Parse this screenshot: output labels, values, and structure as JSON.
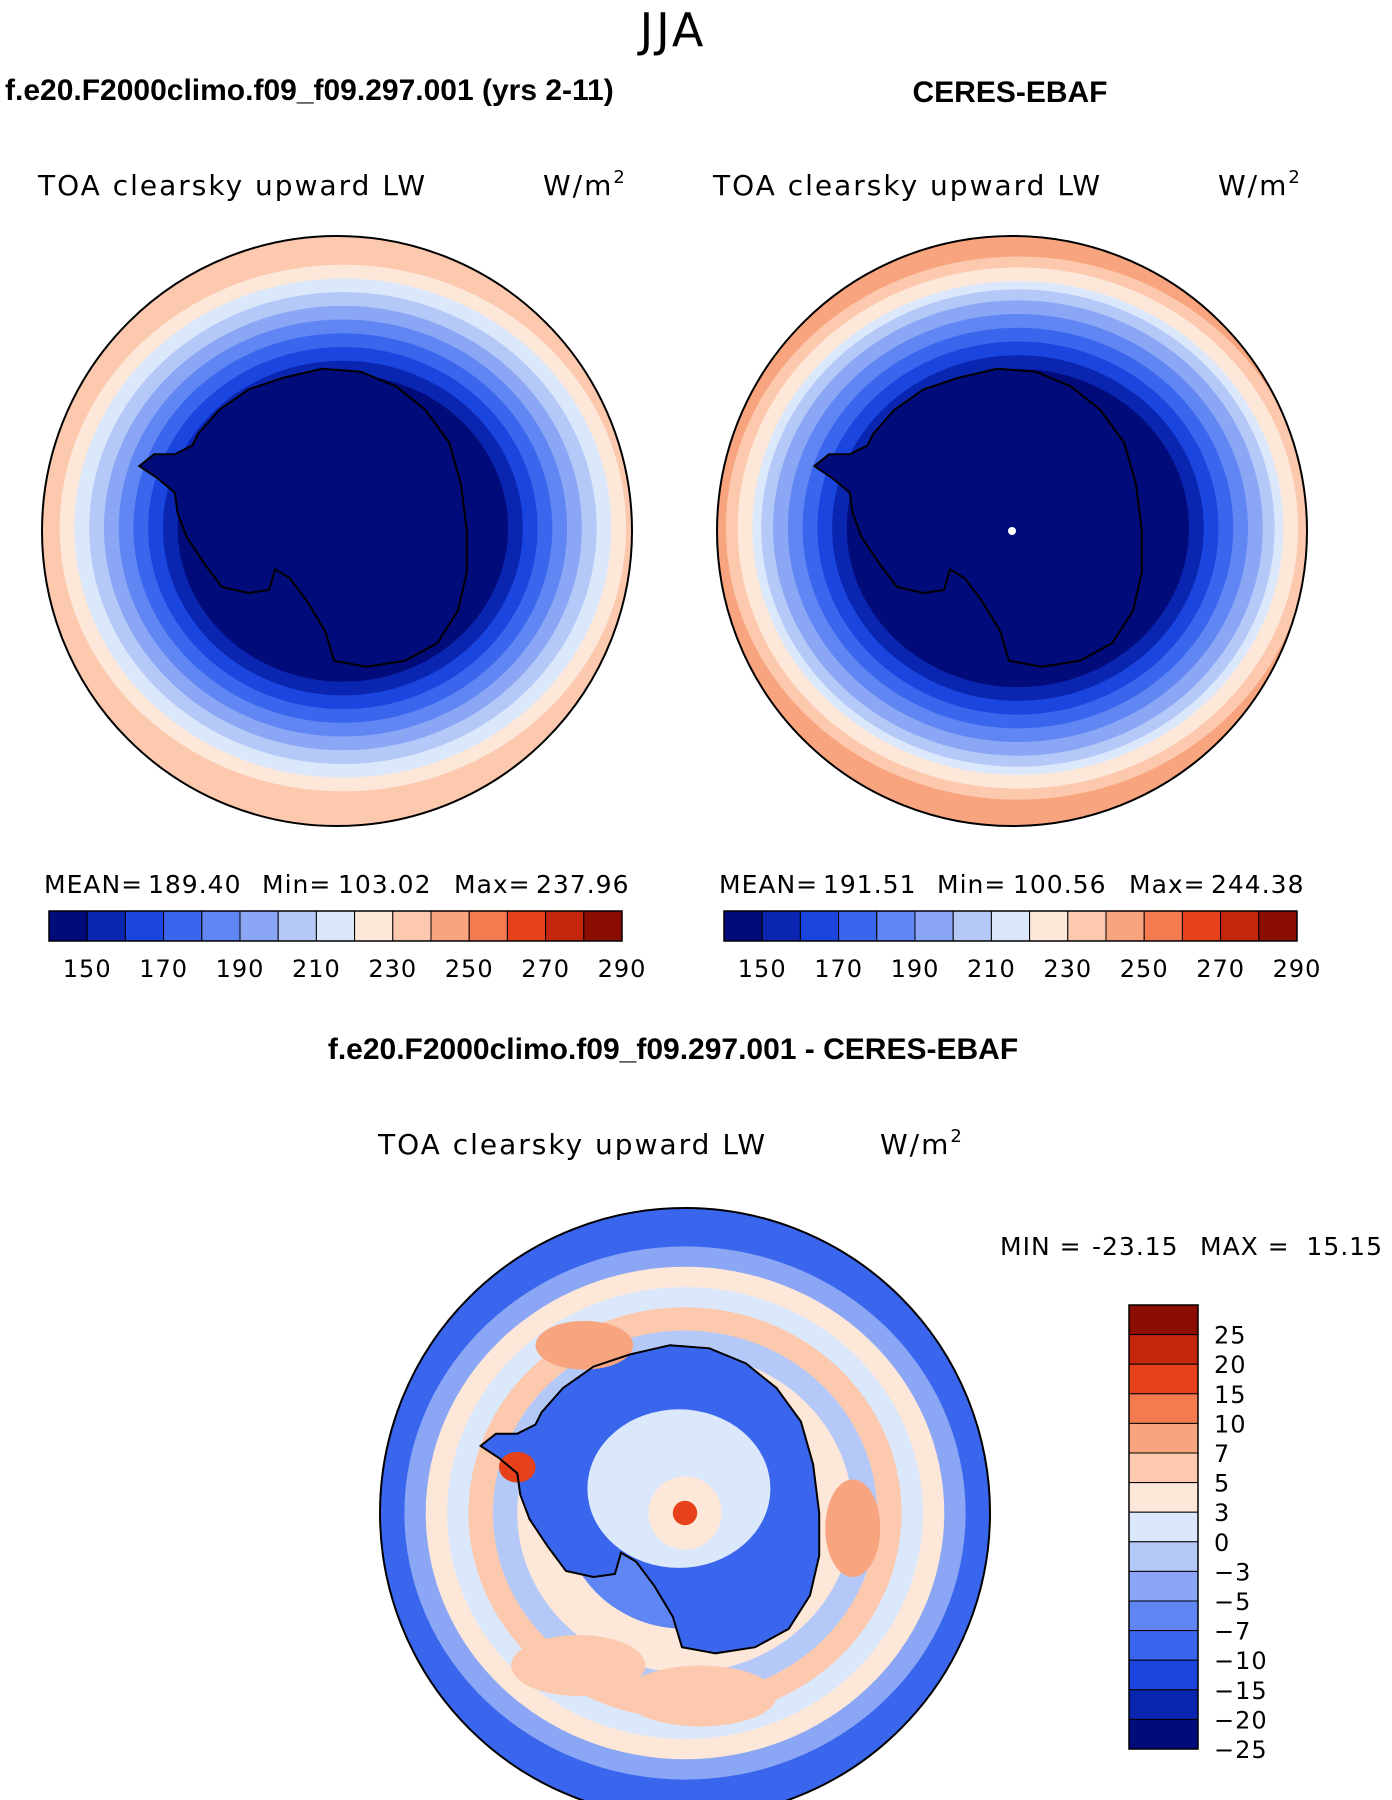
{
  "season": "JJA",
  "titles": {
    "model": "f.e20.F2000climo.f09_f09.297.001 (yrs 2-11)",
    "obs": "CERES-EBAF",
    "diff": "f.e20.F2000climo.f09_f09.297.001 - CERES-EBAF"
  },
  "variable": "TOA clearsky upward LW",
  "units_base": "W/m",
  "units_exp": "2",
  "colors": {
    "abs_scale": [
      "#020b7a",
      "#0a26b0",
      "#1a45de",
      "#3a66ee",
      "#5f86f3",
      "#8aa6f4",
      "#b5c9f8",
      "#dbe7fb",
      "#fde7d8",
      "#fcc9ae",
      "#f8a47e",
      "#f47a4f",
      "#e6411b",
      "#c3260b",
      "#8c0d02"
    ],
    "diff_scale": [
      "#020b7a",
      "#0a26b0",
      "#1a45de",
      "#3a66ee",
      "#5f86f3",
      "#8aa6f4",
      "#b5c9f8",
      "#dbe7fb",
      "#fde7d8",
      "#fcc9ae",
      "#f8a47e",
      "#f47a4f",
      "#e6411b",
      "#c3260b",
      "#8c0d02"
    ],
    "coastline": "#000000"
  },
  "chart_data": [
    {
      "type": "heatmap",
      "projection": "south polar stereographic",
      "title": "f.e20.F2000climo.f09_f09.297.001 (yrs 2-11)",
      "field": "TOA clearsky upward LW",
      "units": "W/m2",
      "mean_label": "MEAN=",
      "mean": "189.40",
      "min_label": "Min=",
      "min": "103.02",
      "max_label": "Max=",
      "max": "237.96",
      "contour_levels": [
        150,
        160,
        170,
        180,
        190,
        200,
        210,
        220,
        230,
        240,
        250,
        260,
        270,
        280
      ],
      "colorbar_ticks": [
        "150",
        "170",
        "190",
        "210",
        "230",
        "250",
        "270",
        "290"
      ],
      "rings_inner_to_outer": [
        100,
        145,
        155,
        165,
        175,
        185,
        195,
        205,
        215,
        225,
        235
      ]
    },
    {
      "type": "heatmap",
      "projection": "south polar stereographic",
      "title": "CERES-EBAF",
      "field": "TOA clearsky upward LW",
      "units": "W/m2",
      "mean_label": "MEAN=",
      "mean": "191.51",
      "min_label": "Min=",
      "min": "100.56",
      "max_label": "Max=",
      "max": "244.38",
      "contour_levels": [
        150,
        160,
        170,
        180,
        190,
        200,
        210,
        220,
        230,
        240,
        250,
        260,
        270,
        280
      ],
      "colorbar_ticks": [
        "150",
        "170",
        "190",
        "210",
        "230",
        "250",
        "270",
        "290"
      ],
      "rings_inner_to_outer": [
        100,
        145,
        155,
        165,
        175,
        185,
        195,
        205,
        215,
        225,
        235,
        245
      ]
    },
    {
      "type": "heatmap",
      "projection": "south polar stereographic",
      "title": "f.e20.F2000climo.f09_f09.297.001 - CERES-EBAF",
      "field": "TOA clearsky upward LW",
      "units": "W/m2",
      "min_label": "MIN =",
      "min": "-23.15",
      "max_label": "MAX =",
      "max": "15.15",
      "contour_levels": [
        -25,
        -20,
        -15,
        -10,
        -7,
        -5,
        -3,
        0,
        3,
        5,
        7,
        10,
        15,
        20,
        25
      ],
      "colorbar_ticks": [
        "25",
        "20",
        "15",
        "10",
        "7",
        "5",
        "3",
        "0",
        "−3",
        "−5",
        "−7",
        "−10",
        "−15",
        "−20",
        "−25"
      ],
      "rings_inner_to_outer": [
        2,
        -8,
        1,
        -4,
        4,
        -2,
        1,
        -6,
        -12
      ]
    }
  ]
}
